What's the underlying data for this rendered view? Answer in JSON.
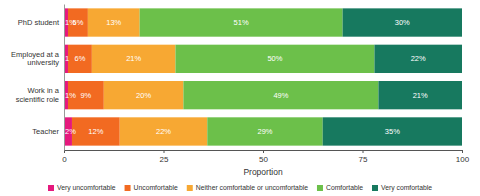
{
  "chart_data": {
    "type": "bar",
    "orientation": "horizontal",
    "stacked": true,
    "data_labels": true,
    "categories": [
      "PhD student",
      "Employed at a university",
      "Work in a scientific role",
      "Teacher"
    ],
    "series": [
      {
        "name": "Very uncomfortable",
        "color": "#e5197d",
        "values": [
          1,
          1,
          1,
          2
        ],
        "value_labels": [
          "1%",
          "1",
          "1%",
          "2%"
        ]
      },
      {
        "name": "Uncomfortable",
        "color": "#f26a21",
        "values": [
          5,
          6,
          9,
          12
        ],
        "value_labels": [
          "5%",
          "6%",
          "9%",
          "12%"
        ]
      },
      {
        "name": "Neither comfortable or uncomfortable",
        "color": "#f7a833",
        "values": [
          13,
          21,
          20,
          22
        ],
        "value_labels": [
          "13%",
          "21%",
          "20%",
          "22%"
        ]
      },
      {
        "name": "Comfortable",
        "color": "#6cc04a",
        "values": [
          51,
          50,
          49,
          29
        ],
        "value_labels": [
          "51%",
          "50%",
          "49%",
          "29%"
        ]
      },
      {
        "name": "Very comfortable",
        "color": "#17795f",
        "values": [
          30,
          22,
          21,
          35
        ],
        "value_labels": [
          "30%",
          "22%",
          "21%",
          "35%"
        ]
      }
    ],
    "xlim": [
      0,
      100
    ],
    "xticks": [
      0,
      25,
      50,
      75,
      100
    ],
    "xlabel": "Proportion",
    "legend": "bottom"
  }
}
